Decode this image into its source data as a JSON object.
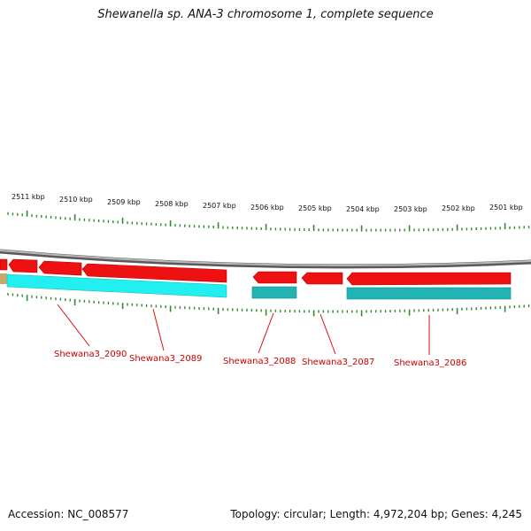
{
  "title": "Shewanella sp. ANA-3 chromosome 1, complete sequence",
  "accession": "Accession: NC_008577",
  "topology": "Topology: circular; Length: 4,972,204 bp; Genes: 4,245",
  "colors": {
    "backbone": "#8a8a8a",
    "tick": "#2e8b2e",
    "gene_red": "#ee1111",
    "gene_cyan": "#22f0f0",
    "gene_teal": "#22b4b4",
    "label_red": "#cc0000",
    "tan_block": "#c8a96a"
  },
  "ruler": {
    "labels": [
      "2511 kbp",
      "2510 kbp",
      "2509 kbp",
      "2508 kbp",
      "2507 kbp",
      "2506 kbp",
      "2505 kbp",
      "2504 kbp",
      "2503 kbp",
      "2502 kbp",
      "2501 kbp"
    ]
  },
  "gene_labels": [
    "Shewana3_2090",
    "Shewana3_2089",
    "Shewana3_2088",
    "Shewana3_2087",
    "Shewana3_2086"
  ]
}
